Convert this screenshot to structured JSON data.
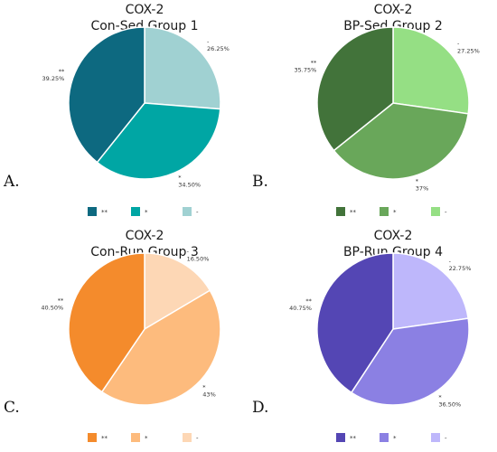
{
  "chart_data": [
    {
      "type": "pie",
      "panel_letter": "A.",
      "title_line1": "COX-2",
      "title_line2": "Con-Sed Group 1",
      "start_at": "top",
      "direction": "clockwise",
      "slices": [
        {
          "label": "-",
          "value": 26.25,
          "display": "26.25%",
          "color": "#a0d1d2"
        },
        {
          "label": "*",
          "value": 34.5,
          "display": "34.50%",
          "color": "#00a6a4"
        },
        {
          "label": "**",
          "value": 39.25,
          "display": "39.25%",
          "color": "#0d6980"
        }
      ],
      "legend": [
        {
          "symbol": "**",
          "color": "#0d6980"
        },
        {
          "symbol": "*",
          "color": "#00a6a4"
        },
        {
          "symbol": "-",
          "color": "#a0d1d2"
        }
      ]
    },
    {
      "type": "pie",
      "panel_letter": "B.",
      "title_line1": "COX-2",
      "title_line2": "BP-Sed Group 2",
      "start_at": "top",
      "direction": "clockwise",
      "slices": [
        {
          "label": "-",
          "value": 27.25,
          "display": "27.25%",
          "color": "#95df84"
        },
        {
          "label": "*",
          "value": 37.0,
          "display": "37%",
          "color": "#69a75a"
        },
        {
          "label": "**",
          "value": 35.75,
          "display": "35.75%",
          "color": "#42733a"
        }
      ],
      "legend": [
        {
          "symbol": "**",
          "color": "#42733a"
        },
        {
          "symbol": "*",
          "color": "#69a75a"
        },
        {
          "symbol": "-",
          "color": "#95df84"
        }
      ]
    },
    {
      "type": "pie",
      "panel_letter": "C.",
      "title_line1": "COX-2",
      "title_line2": "Con-Run Group 3",
      "start_at": "top",
      "direction": "clockwise",
      "slices": [
        {
          "label": "-",
          "value": 16.5,
          "display": "16.50%",
          "color": "#fdd7b5"
        },
        {
          "label": "*",
          "value": 43.0,
          "display": "43%",
          "color": "#fdbb7d"
        },
        {
          "label": "**",
          "value": 40.5,
          "display": "40.50%",
          "color": "#f48b2c"
        }
      ],
      "legend": [
        {
          "symbol": "**",
          "color": "#f48b2c"
        },
        {
          "symbol": "*",
          "color": "#fdbb7d"
        },
        {
          "symbol": "-",
          "color": "#fdd7b5"
        }
      ]
    },
    {
      "type": "pie",
      "panel_letter": "D.",
      "title_line1": "COX-2",
      "title_line2": "BP-Run Group 4",
      "start_at": "top",
      "direction": "clockwise",
      "slices": [
        {
          "label": "-",
          "value": 22.75,
          "display": "22.75%",
          "color": "#beb7fb"
        },
        {
          "label": "*",
          "value": 36.5,
          "display": "36.50%",
          "color": "#8b80e3"
        },
        {
          "label": "**",
          "value": 40.75,
          "display": "40.75%",
          "color": "#5446b4"
        }
      ],
      "legend": [
        {
          "symbol": "**",
          "color": "#5446b4"
        },
        {
          "symbol": "*",
          "color": "#8b80e3"
        },
        {
          "symbol": "-",
          "color": "#beb7fb"
        }
      ]
    }
  ]
}
